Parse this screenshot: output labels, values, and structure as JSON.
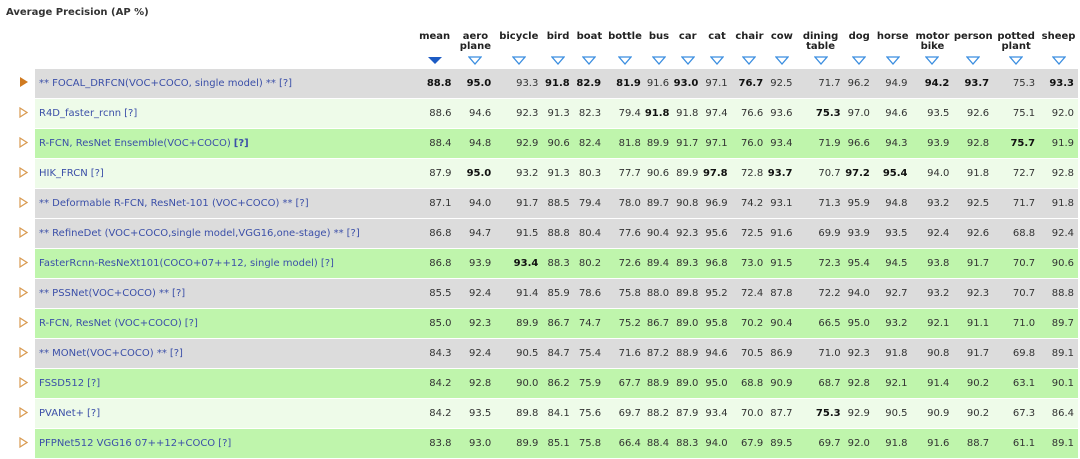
{
  "title": "Average Precision (AP %)",
  "columns": [
    "mean",
    "aero plane",
    "bicycle",
    "bird",
    "boat",
    "bottle",
    "bus",
    "car",
    "cat",
    "chair",
    "cow",
    "dining table",
    "dog",
    "horse",
    "motor bike",
    "person",
    "potted plant",
    "sheep"
  ],
  "help_link": "[?]",
  "rows": [
    {
      "name": "** FOCAL_DRFCN(VOC+COCO, single model) **",
      "style": "gray",
      "values": [
        "88.8",
        "95.0",
        "93.3",
        "91.8",
        "82.9",
        "81.9",
        "91.6",
        "93.0",
        "97.1",
        "76.7",
        "92.5",
        "71.7",
        "96.2",
        "94.9",
        "94.2",
        "93.7",
        "75.3",
        "93.3"
      ],
      "bold": [
        0,
        1,
        3,
        4,
        5,
        7,
        9,
        14,
        15,
        17
      ]
    },
    {
      "name": "R4D_faster_rcnn",
      "style": "lgreen",
      "values": [
        "88.6",
        "94.6",
        "92.3",
        "91.3",
        "82.3",
        "79.4",
        "91.8",
        "91.8",
        "97.4",
        "76.6",
        "93.6",
        "75.3",
        "97.0",
        "94.6",
        "93.5",
        "92.6",
        "75.1",
        "92.0"
      ],
      "bold": [
        6,
        11
      ]
    },
    {
      "name": "R-FCN, ResNet Ensemble(VOC+COCO)",
      "style": "green",
      "values": [
        "88.4",
        "94.8",
        "92.9",
        "90.6",
        "82.4",
        "81.8",
        "89.9",
        "91.7",
        "97.1",
        "76.0",
        "93.4",
        "71.9",
        "96.6",
        "94.3",
        "93.9",
        "92.8",
        "75.7",
        "91.9"
      ],
      "bold": [
        16
      ]
    },
    {
      "name": "HIK_FRCN",
      "style": "lgreen",
      "values": [
        "87.9",
        "95.0",
        "93.2",
        "91.3",
        "80.3",
        "77.7",
        "90.6",
        "89.9",
        "97.8",
        "72.8",
        "93.7",
        "70.7",
        "97.2",
        "95.4",
        "94.0",
        "91.8",
        "72.7",
        "92.8"
      ],
      "bold": [
        1,
        8,
        10,
        12,
        13
      ]
    },
    {
      "name": "** Deformable R-FCN, ResNet-101 (VOC+COCO) **",
      "style": "gray",
      "values": [
        "87.1",
        "94.0",
        "91.7",
        "88.5",
        "79.4",
        "78.0",
        "89.7",
        "90.8",
        "96.9",
        "74.2",
        "93.1",
        "71.3",
        "95.9",
        "94.8",
        "93.2",
        "92.5",
        "71.7",
        "91.8"
      ],
      "bold": []
    },
    {
      "name": "** RefineDet (VOC+COCO,single model,VGG16,one-stage) **",
      "style": "gray",
      "values": [
        "86.8",
        "94.7",
        "91.5",
        "88.8",
        "80.4",
        "77.6",
        "90.4",
        "92.3",
        "95.6",
        "72.5",
        "91.6",
        "69.9",
        "93.9",
        "93.5",
        "92.4",
        "92.6",
        "68.8",
        "92.4"
      ],
      "bold": []
    },
    {
      "name": "FasterRcnn-ResNeXt101(COCO+07++12, single model)",
      "style": "green",
      "values": [
        "86.8",
        "93.9",
        "93.4",
        "88.3",
        "80.2",
        "72.6",
        "89.4",
        "89.3",
        "96.8",
        "73.0",
        "91.5",
        "72.3",
        "95.4",
        "94.5",
        "93.8",
        "91.7",
        "70.7",
        "90.6"
      ],
      "bold": [
        2
      ]
    },
    {
      "name": "** PSSNet(VOC+COCO) **",
      "style": "gray",
      "values": [
        "85.5",
        "92.4",
        "91.4",
        "85.9",
        "78.6",
        "75.8",
        "88.0",
        "89.8",
        "95.2",
        "72.4",
        "87.8",
        "72.2",
        "94.0",
        "92.7",
        "93.2",
        "92.3",
        "70.7",
        "88.8"
      ],
      "bold": []
    },
    {
      "name": "R-FCN, ResNet (VOC+COCO)",
      "style": "green",
      "values": [
        "85.0",
        "92.3",
        "89.9",
        "86.7",
        "74.7",
        "75.2",
        "86.7",
        "89.0",
        "95.8",
        "70.2",
        "90.4",
        "66.5",
        "95.0",
        "93.2",
        "92.1",
        "91.1",
        "71.0",
        "89.7"
      ],
      "bold": []
    },
    {
      "name": "** MONet(VOC+COCO) **",
      "style": "gray",
      "values": [
        "84.3",
        "92.4",
        "90.5",
        "84.7",
        "75.4",
        "71.6",
        "87.2",
        "88.9",
        "94.6",
        "70.5",
        "86.9",
        "71.0",
        "92.3",
        "91.8",
        "90.8",
        "91.7",
        "69.8",
        "89.1"
      ],
      "bold": []
    },
    {
      "name": "FSSD512",
      "style": "green",
      "values": [
        "84.2",
        "92.8",
        "90.0",
        "86.2",
        "75.9",
        "67.7",
        "88.9",
        "89.0",
        "95.0",
        "68.8",
        "90.9",
        "68.7",
        "92.8",
        "92.1",
        "91.4",
        "90.2",
        "63.1",
        "90.1"
      ],
      "bold": []
    },
    {
      "name": "PVANet+",
      "style": "lgreen",
      "values": [
        "84.2",
        "93.5",
        "89.8",
        "84.1",
        "75.6",
        "69.7",
        "88.2",
        "87.9",
        "93.4",
        "70.0",
        "87.7",
        "75.3",
        "92.9",
        "90.5",
        "90.9",
        "90.2",
        "67.3",
        "86.4"
      ],
      "bold": [
        11
      ]
    },
    {
      "name": "PFPNet512 VGG16 07++12+COCO",
      "style": "green",
      "values": [
        "83.8",
        "93.0",
        "89.9",
        "85.1",
        "75.8",
        "66.4",
        "88.4",
        "88.3",
        "94.0",
        "67.9",
        "89.5",
        "69.7",
        "92.0",
        "91.8",
        "91.6",
        "88.7",
        "61.1",
        "89.1"
      ],
      "bold": []
    }
  ]
}
